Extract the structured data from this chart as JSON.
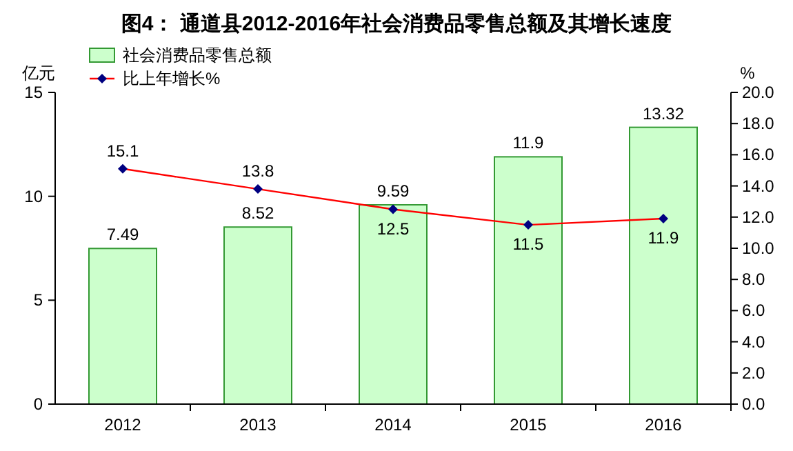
{
  "chart_data": {
    "type": "bar",
    "title": "图4： 通道县2012-2016年社会消费品零售总额及其增长速度",
    "ylabel": "亿元",
    "y2label": "%",
    "categories": [
      "2012",
      "2013",
      "2014",
      "2015",
      "2016"
    ],
    "series": [
      {
        "name": "社会消费品零售总额",
        "color": "#ccffcc",
        "values": [
          7.49,
          8.52,
          9.59,
          11.9,
          13.32
        ]
      },
      {
        "name": "比上年增长%",
        "type": "line",
        "axis": "y2",
        "color": "#ff0000",
        "marker": "diamond",
        "values": [
          15.1,
          13.8,
          12.5,
          11.5,
          11.9
        ]
      }
    ],
    "ylim": [
      0,
      15
    ],
    "yticks": [
      0,
      5,
      10,
      15
    ],
    "y2lim": [
      0,
      20
    ],
    "y2ticks": [
      {
        "value": 0,
        "label": "0.0"
      },
      {
        "value": 2,
        "label": "2.0"
      },
      {
        "value": 4,
        "label": "4.0"
      },
      {
        "value": 6,
        "label": "6.0"
      },
      {
        "value": 8,
        "label": "8.0"
      },
      {
        "value": 10,
        "label": "10.0"
      },
      {
        "value": 12,
        "label": "12.0"
      },
      {
        "value": 14,
        "label": "14.0"
      },
      {
        "value": 16,
        "label": "16.0"
      },
      {
        "value": 18,
        "label": "18.0"
      },
      {
        "value": 20,
        "label": "20.0"
      }
    ],
    "data_labels": true,
    "grid": false,
    "legend": "top left"
  }
}
